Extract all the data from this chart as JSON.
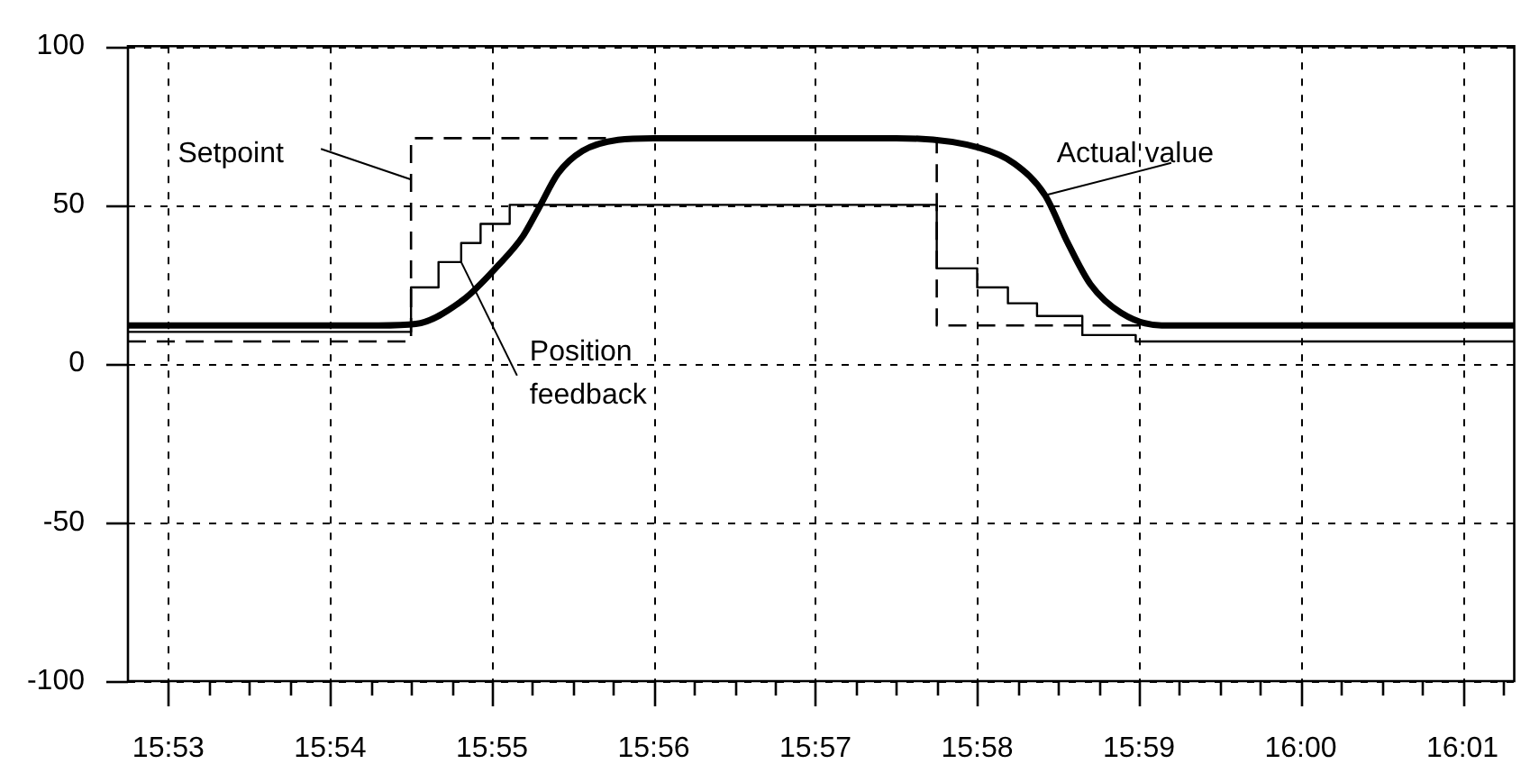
{
  "chart_data": {
    "type": "line",
    "xlim": [
      15.879167,
      16.022
    ],
    "xticks": [
      {
        "value": 15.883333,
        "label": "15:53"
      },
      {
        "value": 15.8875,
        "label": null
      },
      {
        "value": 15.891667,
        "label": null
      },
      {
        "value": 15.895833,
        "label": null
      },
      {
        "value": 15.9,
        "label": "15:54"
      },
      {
        "value": 15.904167,
        "label": null
      },
      {
        "value": 15.908333,
        "label": null
      },
      {
        "value": 15.9125,
        "label": null
      },
      {
        "value": 15.916667,
        "label": "15:55"
      },
      {
        "value": 15.920833,
        "label": null
      },
      {
        "value": 15.925,
        "label": null
      },
      {
        "value": 15.929167,
        "label": null
      },
      {
        "value": 15.933333,
        "label": "15:56"
      },
      {
        "value": 15.9375,
        "label": null
      },
      {
        "value": 15.941667,
        "label": null
      },
      {
        "value": 15.945833,
        "label": null
      },
      {
        "value": 15.95,
        "label": "15:57"
      },
      {
        "value": 15.954167,
        "label": null
      },
      {
        "value": 15.958333,
        "label": null
      },
      {
        "value": 15.9625,
        "label": null
      },
      {
        "value": 15.966667,
        "label": "15:58"
      },
      {
        "value": 15.970833,
        "label": null
      },
      {
        "value": 15.975,
        "label": null
      },
      {
        "value": 15.979167,
        "label": null
      },
      {
        "value": 15.983333,
        "label": "15:59"
      },
      {
        "value": 15.9875,
        "label": null
      },
      {
        "value": 15.991667,
        "label": null
      },
      {
        "value": 15.995833,
        "label": null
      },
      {
        "value": 16.0,
        "label": "16:00"
      },
      {
        "value": 16.004167,
        "label": null
      },
      {
        "value": 16.008333,
        "label": null
      },
      {
        "value": 16.0125,
        "label": null
      },
      {
        "value": 16.016667,
        "label": "16:01"
      },
      {
        "value": 16.020833,
        "label": null
      }
    ],
    "ylim": [
      -100,
      100
    ],
    "yticks": [
      -100,
      -50,
      0,
      50,
      100
    ],
    "grid": true,
    "legend": false,
    "annotations": [
      {
        "text": "Setpoint",
        "x": 15.908333,
        "y": 58
      },
      {
        "text": "Position\nfeedback",
        "x": 15.9135,
        "y": 32
      },
      {
        "text": "Actual value",
        "x": 15.973667,
        "y": 53
      }
    ],
    "series": [
      {
        "type": "step",
        "color": "#000000",
        "line_style": "dashed",
        "x": [
          15.879167,
          15.908333,
          15.9625,
          16.022
        ],
        "values": [
          7,
          71,
          12,
          12
        ]
      },
      {
        "type": "step",
        "color": "#000000",
        "line_style": "solid",
        "x": [
          15.879167,
          15.908333,
          15.911167,
          15.9135,
          15.9155,
          15.9185,
          15.9625,
          15.966667,
          15.969833,
          15.972833,
          15.9775,
          15.983,
          16.022
        ],
        "values": [
          10,
          24,
          32,
          38,
          44,
          50,
          30,
          24,
          19,
          15,
          9,
          7,
          7
        ]
      },
      {
        "type": "line",
        "color": "#000000",
        "line_style": "solid",
        "x": [
          15.879167,
          15.905,
          15.908833,
          15.913667,
          15.917333,
          15.919833,
          15.9215,
          15.9235,
          15.926,
          15.929667,
          15.933333,
          15.958333,
          15.966833,
          15.9705,
          15.973667,
          15.976,
          15.978333,
          15.9815,
          15.985667,
          15.989333,
          16.022
        ],
        "values": [
          12,
          12,
          12.5,
          20,
          31,
          40,
          49,
          60,
          67,
          70.5,
          71,
          71,
          68,
          63,
          53,
          38,
          25,
          16,
          12,
          12,
          12
        ]
      }
    ]
  }
}
